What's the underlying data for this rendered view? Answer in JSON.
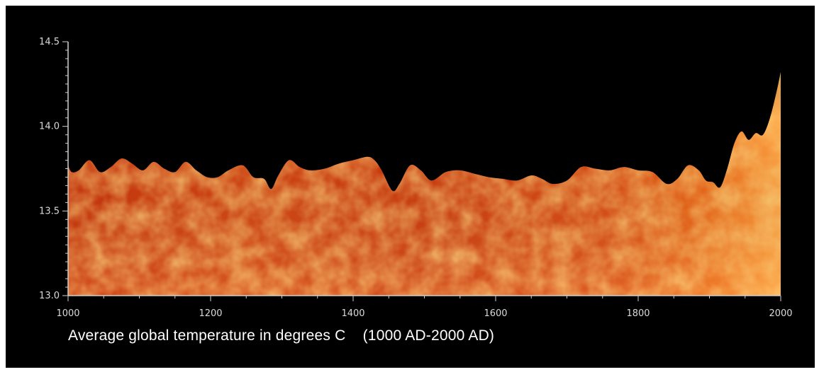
{
  "chart_data": {
    "type": "area",
    "title": "Average global temperature in degrees C    (1000 AD-2000 AD)",
    "xlabel": "",
    "ylabel": "",
    "xlim": [
      1000,
      2000
    ],
    "ylim": [
      13.0,
      14.5
    ],
    "x_ticks": [
      "1000",
      "1200",
      "1400",
      "1600",
      "1800",
      "2000"
    ],
    "y_ticks": [
      "13.0",
      "13.5",
      "14.0",
      "14.5"
    ],
    "grid": false,
    "fill_color": "#c8320a",
    "x": [
      1000,
      1005,
      1015,
      1030,
      1045,
      1060,
      1075,
      1090,
      1105,
      1120,
      1135,
      1150,
      1165,
      1180,
      1195,
      1210,
      1225,
      1245,
      1260,
      1275,
      1285,
      1295,
      1310,
      1325,
      1340,
      1360,
      1380,
      1400,
      1420,
      1430,
      1440,
      1455,
      1465,
      1480,
      1495,
      1510,
      1530,
      1550,
      1570,
      1590,
      1610,
      1630,
      1650,
      1665,
      1680,
      1700,
      1720,
      1740,
      1760,
      1780,
      1800,
      1820,
      1840,
      1855,
      1870,
      1885,
      1895,
      1905,
      1915,
      1925,
      1935,
      1945,
      1955,
      1965,
      1975,
      1985,
      1995,
      2000
    ],
    "y": [
      13.77,
      13.73,
      13.74,
      13.8,
      13.73,
      13.76,
      13.81,
      13.78,
      13.74,
      13.79,
      13.75,
      13.73,
      13.79,
      13.74,
      13.7,
      13.7,
      13.74,
      13.77,
      13.7,
      13.69,
      13.63,
      13.71,
      13.8,
      13.76,
      13.74,
      13.75,
      13.78,
      13.8,
      13.82,
      13.8,
      13.74,
      13.62,
      13.66,
      13.77,
      13.74,
      13.68,
      13.73,
      13.74,
      13.72,
      13.7,
      13.69,
      13.68,
      13.71,
      13.69,
      13.66,
      13.68,
      13.76,
      13.75,
      13.74,
      13.76,
      13.74,
      13.73,
      13.66,
      13.69,
      13.77,
      13.74,
      13.68,
      13.67,
      13.64,
      13.75,
      13.9,
      13.97,
      13.92,
      13.96,
      13.95,
      14.05,
      14.22,
      14.32
    ]
  },
  "caption": "Average global temperature in degrees C    (1000 AD-2000 AD)"
}
